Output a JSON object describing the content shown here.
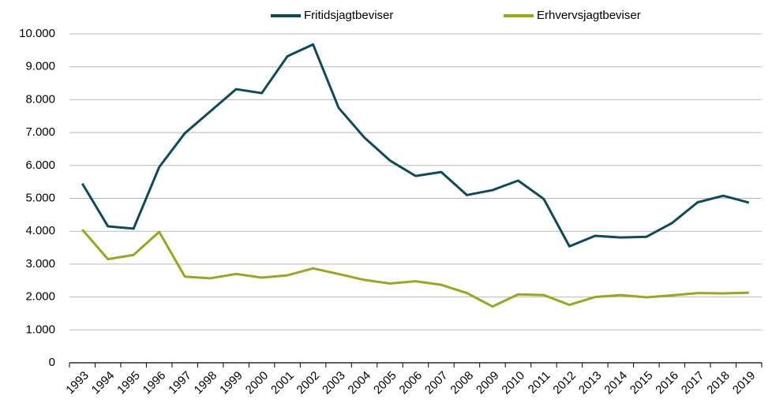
{
  "chart_data": {
    "type": "line",
    "categories": [
      "1993",
      "1994",
      "1995",
      "1996",
      "1997",
      "1998",
      "1999",
      "2000",
      "2001",
      "2002",
      "2003",
      "2004",
      "2005",
      "2006",
      "2007",
      "2008",
      "2009",
      "2010",
      "2011",
      "2012",
      "2013",
      "2014",
      "2015",
      "2016",
      "2017",
      "2018",
      "2019"
    ],
    "series": [
      {
        "name": "Fritidsjagtbeviser",
        "color": "#0d4b5a",
        "values": [
          5450,
          4150,
          4080,
          5950,
          6980,
          7650,
          8320,
          8200,
          9320,
          9680,
          7750,
          6850,
          6150,
          5680,
          5800,
          5100,
          5250,
          5540,
          4980,
          3540,
          3860,
          3810,
          3830,
          4250,
          4880,
          5080,
          4870
        ]
      },
      {
        "name": "Erhvervsjagtbeviser",
        "color": "#9aa61c",
        "values": [
          4050,
          3150,
          3280,
          3980,
          2620,
          2570,
          2700,
          2590,
          2660,
          2870,
          2700,
          2520,
          2410,
          2480,
          2370,
          2120,
          1710,
          2080,
          2060,
          1760,
          2000,
          2060,
          1990,
          2050,
          2120,
          2110,
          2130
        ]
      }
    ],
    "ylim": [
      0,
      10000
    ],
    "yticks": [
      0,
      {
        "value": 1000,
        "label": "1.000"
      },
      {
        "value": 2000,
        "label": "2.000"
      },
      {
        "value": 3000,
        "label": "3.000"
      },
      {
        "value": 4000,
        "label": "4.000"
      },
      {
        "value": 5000,
        "label": "5.000"
      },
      {
        "value": 6000,
        "label": "6.000"
      },
      {
        "value": 7000,
        "label": "7.000"
      },
      {
        "value": 8000,
        "label": "8.000"
      },
      {
        "value": 9000,
        "label": "9.000"
      },
      {
        "value": 10000,
        "label": "10.000"
      }
    ],
    "grid": true,
    "legend": "top"
  }
}
